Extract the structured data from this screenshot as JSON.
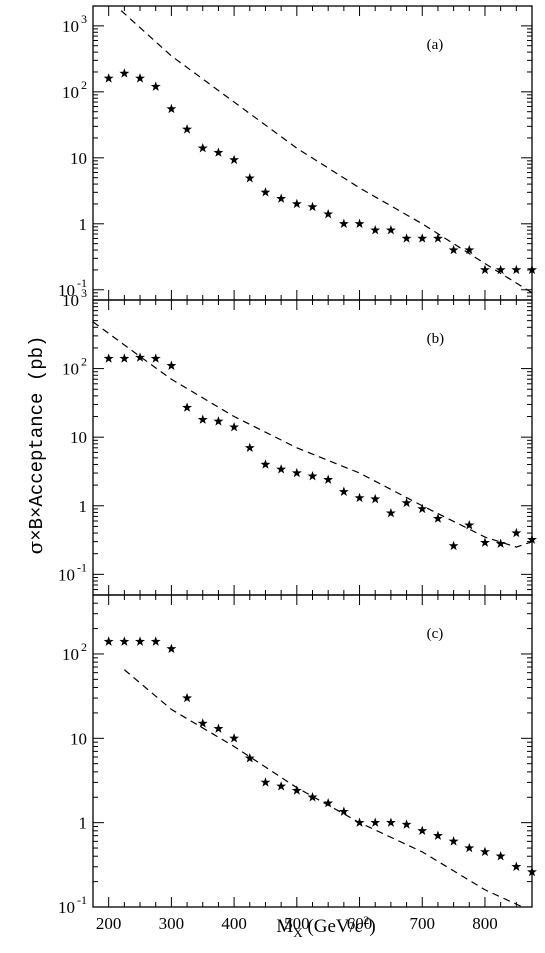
{
  "figure": {
    "ylabel_sigma": "σ",
    "ylabel_rest": "×B×Acceptance (pb)",
    "xlabel_main": "M",
    "xlabel_sub": "X",
    "xlabel_units_open": " (GeV/",
    "xlabel_units_c": "c",
    "xlabel_units_exp": "2",
    "xlabel_units_close": ")"
  },
  "chart_data": [
    {
      "type": "scatter",
      "panel_label": "(a)",
      "y_scale": "log",
      "xlim": [
        175,
        875
      ],
      "ylim": [
        0.07,
        2000
      ],
      "x_ticks": [
        200,
        300,
        400,
        500,
        600,
        700,
        800
      ],
      "y_tick_labels": [
        {
          "value": 1000,
          "mantissa": "10",
          "exp": "3"
        },
        {
          "value": 100,
          "mantissa": "10",
          "exp": "2"
        },
        {
          "value": 10,
          "mantissa": "10",
          "exp": ""
        },
        {
          "value": 1,
          "mantissa": "1",
          "exp": ""
        },
        {
          "value": 0.1,
          "mantissa": "10",
          "exp": "-1"
        }
      ],
      "series": [
        {
          "style": "stars",
          "x": [
            200,
            225,
            250,
            275,
            300,
            325,
            350,
            375,
            400,
            425,
            450,
            475,
            500,
            525,
            550,
            575,
            600,
            625,
            650,
            675,
            700,
            725,
            750,
            775,
            800,
            825,
            850,
            875
          ],
          "y": [
            160,
            190,
            160,
            120,
            55,
            27,
            14,
            12,
            9.3,
            4.9,
            3.0,
            2.4,
            2.0,
            1.8,
            1.4,
            1.0,
            1.0,
            0.8,
            0.8,
            0.6,
            0.6,
            0.6,
            0.4,
            0.4,
            0.2,
            0.2,
            0.2,
            0.2
          ]
        },
        {
          "style": "dashed",
          "x": [
            220,
            300,
            400,
            500,
            600,
            700,
            800,
            875
          ],
          "y": [
            1700,
            350,
            70,
            14,
            3.5,
            1.0,
            0.25,
            0.09
          ]
        }
      ]
    },
    {
      "type": "scatter",
      "panel_label": "(b)",
      "y_scale": "log",
      "xlim": [
        175,
        875
      ],
      "ylim": [
        0.05,
        1000
      ],
      "x_ticks": [
        200,
        300,
        400,
        500,
        600,
        700,
        800
      ],
      "y_tick_labels": [
        {
          "value": 1000,
          "mantissa": "10",
          "exp": "3"
        },
        {
          "value": 100,
          "mantissa": "10",
          "exp": "2"
        },
        {
          "value": 10,
          "mantissa": "10",
          "exp": ""
        },
        {
          "value": 1,
          "mantissa": "1",
          "exp": ""
        },
        {
          "value": 0.1,
          "mantissa": "10",
          "exp": "-1"
        }
      ],
      "series": [
        {
          "style": "stars",
          "x": [
            200,
            225,
            250,
            275,
            300,
            325,
            350,
            375,
            400,
            425,
            450,
            475,
            500,
            525,
            550,
            575,
            600,
            625,
            650,
            675,
            700,
            725,
            750,
            775,
            800,
            825,
            850,
            875
          ],
          "y": [
            140,
            140,
            145,
            140,
            110,
            27,
            18,
            17,
            14,
            7,
            4.0,
            3.4,
            3.0,
            2.7,
            2.4,
            1.6,
            1.3,
            1.25,
            0.78,
            1.1,
            0.9,
            0.65,
            0.26,
            0.52,
            0.29,
            0.28,
            0.4,
            0.32
          ]
        },
        {
          "style": "dashed",
          "x": [
            175,
            250,
            300,
            400,
            500,
            600,
            700,
            800,
            850,
            875
          ],
          "y": [
            480,
            150,
            70,
            20,
            7,
            3.0,
            1.0,
            0.35,
            0.25,
            0.3
          ]
        }
      ]
    },
    {
      "type": "scatter",
      "panel_label": "(c)",
      "y_scale": "log",
      "xlim": [
        175,
        875
      ],
      "ylim": [
        0.1,
        500
      ],
      "x_ticks": [
        200,
        300,
        400,
        500,
        600,
        700,
        800
      ],
      "x_tick_labels": [
        "200",
        "300",
        "400",
        "500",
        "600",
        "700",
        "800"
      ],
      "y_tick_labels": [
        {
          "value": 100,
          "mantissa": "10",
          "exp": "2"
        },
        {
          "value": 10,
          "mantissa": "10",
          "exp": ""
        },
        {
          "value": 1,
          "mantissa": "1",
          "exp": ""
        },
        {
          "value": 0.1,
          "mantissa": "10",
          "exp": "-1"
        }
      ],
      "series": [
        {
          "style": "stars",
          "x": [
            200,
            225,
            250,
            275,
            300,
            325,
            350,
            375,
            400,
            425,
            450,
            475,
            500,
            525,
            550,
            575,
            600,
            625,
            650,
            675,
            700,
            725,
            750,
            775,
            800,
            825,
            850,
            875
          ],
          "y": [
            140,
            140,
            140,
            140,
            115,
            30,
            15,
            13,
            10,
            5.8,
            3.0,
            2.7,
            2.4,
            2.0,
            1.7,
            1.35,
            1.0,
            1.0,
            1.0,
            0.95,
            0.8,
            0.7,
            0.6,
            0.5,
            0.45,
            0.4,
            0.3,
            0.26
          ]
        },
        {
          "style": "dashed",
          "x": [
            225,
            300,
            400,
            500,
            600,
            700,
            800,
            860
          ],
          "y": [
            65,
            22,
            8,
            2.6,
            1.0,
            0.45,
            0.16,
            0.1
          ]
        }
      ]
    }
  ]
}
